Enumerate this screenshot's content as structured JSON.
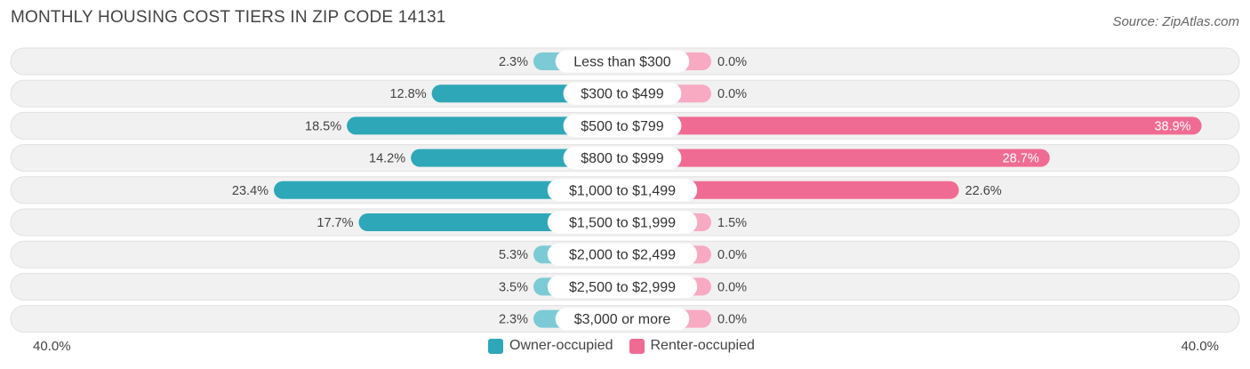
{
  "title": "MONTHLY HOUSING COST TIERS IN ZIP CODE 14131",
  "source": "Source: ZipAtlas.com",
  "colors": {
    "owner": "#2ea7b8",
    "owner_light": "#7ccad5",
    "renter": "#f06b93",
    "renter_light": "#f8aac2",
    "row_bg": "#f1f1f1",
    "row_border": "#e1e1e1"
  },
  "chart_data": {
    "type": "bar",
    "orientation": "horizontal-diverging",
    "title": "MONTHLY HOUSING COST TIERS IN ZIP CODE 14131",
    "categories": [
      "Less than $300",
      "$300 to $499",
      "$500 to $799",
      "$800 to $999",
      "$1,000 to $1,499",
      "$1,500 to $1,999",
      "$2,000 to $2,499",
      "$2,500 to $2,999",
      "$3,000 or more"
    ],
    "series": [
      {
        "name": "Owner-occupied",
        "values": [
          2.3,
          12.8,
          18.5,
          14.2,
          23.4,
          17.7,
          5.3,
          3.5,
          2.3
        ],
        "labels": [
          "2.3%",
          "12.8%",
          "18.5%",
          "14.2%",
          "23.4%",
          "17.7%",
          "5.3%",
          "3.5%",
          "2.3%"
        ]
      },
      {
        "name": "Renter-occupied",
        "values": [
          0.0,
          0.0,
          38.9,
          28.7,
          22.6,
          1.5,
          0.0,
          0.0,
          0.0
        ],
        "labels": [
          "0.0%",
          "0.0%",
          "38.9%",
          "28.7%",
          "22.6%",
          "1.5%",
          "0.0%",
          "0.0%",
          "0.0%"
        ]
      }
    ],
    "axis_min_label": "40.0%",
    "axis_max_label": "40.0%",
    "xlim": [
      -40,
      40
    ],
    "legend": "bottom-center"
  }
}
